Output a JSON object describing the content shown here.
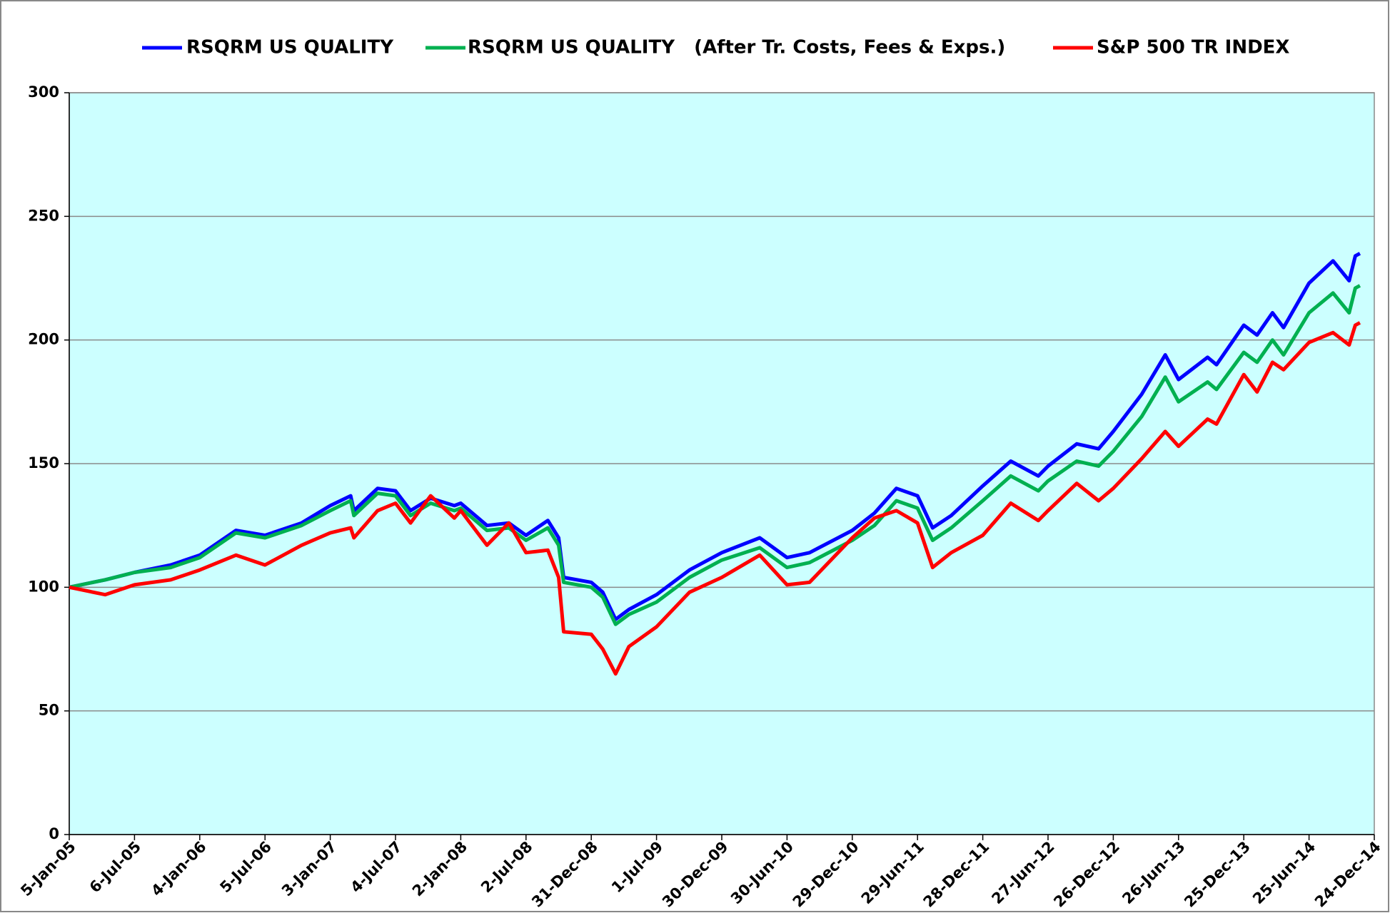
{
  "chart_data": {
    "type": "line",
    "x": [
      "2005-01-05",
      "2005-04-15",
      "2005-07-06",
      "2005-10-15",
      "2006-01-04",
      "2006-04-15",
      "2006-07-05",
      "2006-10-15",
      "2007-01-03",
      "2007-03-01",
      "2007-03-10",
      "2007-05-15",
      "2007-07-04",
      "2007-08-15",
      "2007-10-10",
      "2007-12-15",
      "2008-01-02",
      "2008-03-15",
      "2008-05-15",
      "2008-07-02",
      "2008-09-01",
      "2008-10-01",
      "2008-10-15",
      "2008-12-31",
      "2009-02-01",
      "2009-03-09",
      "2009-04-15",
      "2009-07-01",
      "2009-10-01",
      "2009-12-30",
      "2010-04-15",
      "2010-06-30",
      "2010-09-01",
      "2010-12-29",
      "2011-03-01",
      "2011-05-01",
      "2011-06-29",
      "2011-08-10",
      "2011-10-01",
      "2011-12-28",
      "2012-03-15",
      "2012-05-31",
      "2012-06-27",
      "2012-09-15",
      "2012-11-15",
      "2012-12-26",
      "2013-03-15",
      "2013-05-20",
      "2013-06-26",
      "2013-09-15",
      "2013-10-10",
      "2013-12-25",
      "2014-01-31",
      "2014-03-15",
      "2014-04-15",
      "2014-06-25",
      "2014-08-31",
      "2014-10-15",
      "2014-11-01",
      "2014-11-14"
    ],
    "series": [
      {
        "name": "RSQRM US QUALITY",
        "color": "#0000ff",
        "values": [
          100,
          103,
          106,
          109,
          113,
          123,
          121,
          126,
          133,
          137,
          131,
          140,
          139,
          131,
          136,
          133,
          134,
          125,
          126,
          121,
          127,
          120,
          104,
          102,
          98,
          87,
          91,
          97,
          107,
          114,
          120,
          112,
          114,
          123,
          130,
          140,
          137,
          124,
          129,
          141,
          151,
          145,
          149,
          158,
          156,
          163,
          178,
          194,
          184,
          193,
          190,
          206,
          202,
          211,
          205,
          223,
          232,
          224,
          234,
          235
        ]
      },
      {
        "name": "RSQRM US QUALITY   (After Tr. Costs, Fees & Exps.)",
        "color": "#00b050",
        "values": [
          100,
          103,
          106,
          108,
          112,
          122,
          120,
          125,
          131,
          135,
          129,
          138,
          137,
          129,
          134,
          131,
          132,
          123,
          124,
          119,
          124,
          117,
          102,
          100,
          96,
          85,
          89,
          94,
          104,
          111,
          116,
          108,
          110,
          119,
          125,
          135,
          132,
          119,
          124,
          135,
          145,
          139,
          143,
          151,
          149,
          155,
          169,
          185,
          175,
          183,
          180,
          195,
          191,
          200,
          194,
          211,
          219,
          211,
          221,
          222
        ]
      },
      {
        "name": "S&P 500 TR INDEX",
        "color": "#ff0000",
        "values": [
          100,
          97,
          101,
          103,
          107,
          113,
          109,
          117,
          122,
          124,
          120,
          131,
          134,
          126,
          137,
          128,
          131,
          117,
          126,
          114,
          115,
          104,
          82,
          81,
          75,
          65,
          76,
          84,
          98,
          104,
          113,
          101,
          102,
          120,
          128,
          131,
          126,
          108,
          114,
          121,
          134,
          127,
          131,
          142,
          135,
          140,
          152,
          163,
          157,
          168,
          166,
          186,
          179,
          191,
          188,
          199,
          203,
          198,
          206,
          207
        ]
      }
    ],
    "xlim": [
      "2005-01-05",
      "2014-12-24"
    ],
    "xticks": [
      {
        "value": "2005-01-05",
        "label": "5-Jan-05"
      },
      {
        "value": "2005-07-06",
        "label": "6-Jul-05"
      },
      {
        "value": "2006-01-04",
        "label": "4-Jan-06"
      },
      {
        "value": "2006-07-05",
        "label": "5-Jul-06"
      },
      {
        "value": "2007-01-03",
        "label": "3-Jan-07"
      },
      {
        "value": "2007-07-04",
        "label": "4-Jul-07"
      },
      {
        "value": "2008-01-02",
        "label": "2-Jan-08"
      },
      {
        "value": "2008-07-02",
        "label": "2-Jul-08"
      },
      {
        "value": "2008-12-31",
        "label": "31-Dec-08"
      },
      {
        "value": "2009-07-01",
        "label": "1-Jul-09"
      },
      {
        "value": "2009-12-30",
        "label": "30-Dec-09"
      },
      {
        "value": "2010-06-30",
        "label": "30-Jun-10"
      },
      {
        "value": "2010-12-29",
        "label": "29-Dec-10"
      },
      {
        "value": "2011-06-29",
        "label": "29-Jun-11"
      },
      {
        "value": "2011-12-28",
        "label": "28-Dec-11"
      },
      {
        "value": "2012-06-27",
        "label": "27-Jun-12"
      },
      {
        "value": "2012-12-26",
        "label": "26-Dec-12"
      },
      {
        "value": "2013-06-26",
        "label": "26-Jun-13"
      },
      {
        "value": "2013-12-25",
        "label": "25-Dec-13"
      },
      {
        "value": "2014-06-25",
        "label": "25-Jun-14"
      },
      {
        "value": "2014-12-24",
        "label": "24-Dec-14"
      }
    ],
    "ylim": [
      0,
      300
    ],
    "yticks": [
      0,
      50,
      100,
      150,
      200,
      250,
      300
    ],
    "grid": true,
    "legend": "top",
    "plot_background": "#ccffff"
  }
}
